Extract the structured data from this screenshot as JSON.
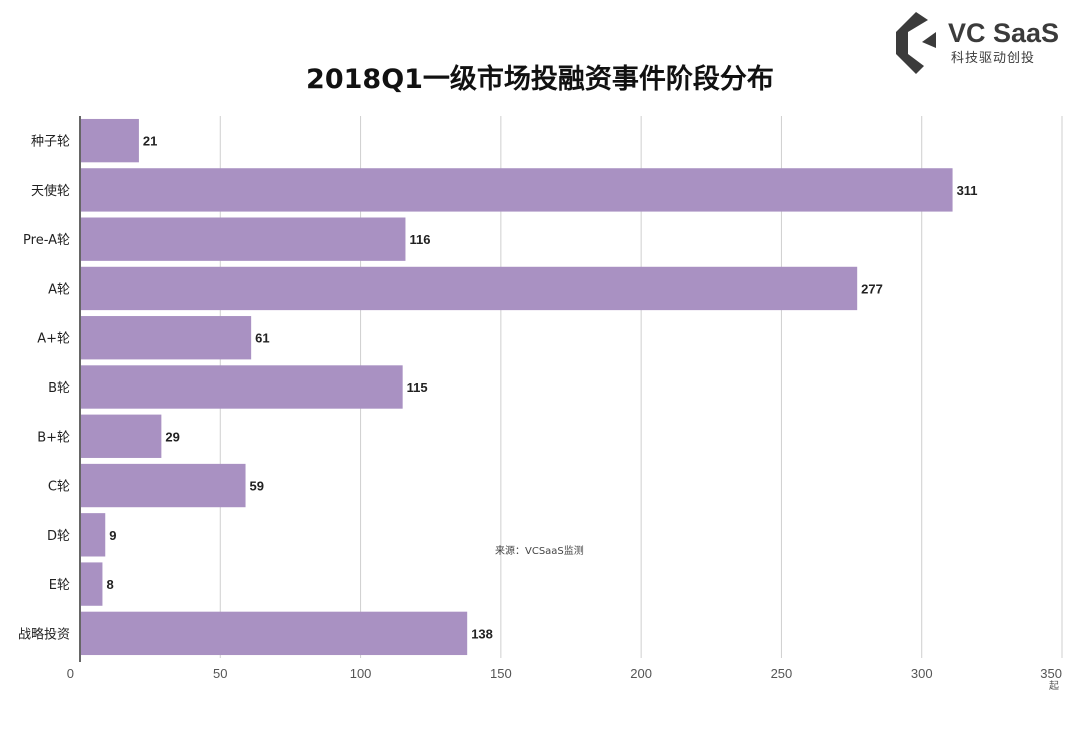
{
  "brand": {
    "name": "VC SaaS",
    "tagline": "科技驱动创投",
    "color": "#3b3b3b"
  },
  "chart_data": {
    "type": "bar",
    "orientation": "horizontal",
    "title": "2018Q1一级市场投融资事件阶段分布",
    "categories": [
      "种子轮",
      "天使轮",
      "Pre-A轮",
      "A轮",
      "A+轮",
      "B轮",
      "B+轮",
      "C轮",
      "D轮",
      "E轮",
      "战略投资"
    ],
    "values": [
      21,
      311,
      116,
      277,
      61,
      115,
      29,
      59,
      9,
      8,
      138
    ],
    "xlim": [
      0,
      350
    ],
    "xticks": [
      0,
      50,
      100,
      150,
      200,
      250,
      300,
      350
    ],
    "unit": "起",
    "source_note": "来源：VCSaaS监测",
    "bar_color": "#a991c2",
    "grid": true
  }
}
